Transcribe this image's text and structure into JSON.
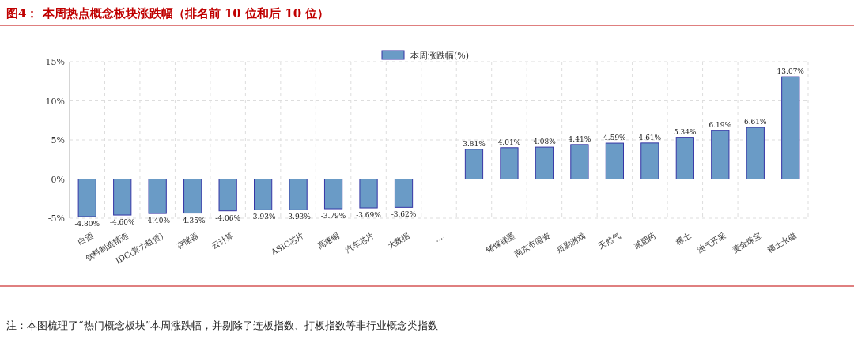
{
  "chart_data": {
    "type": "bar",
    "title": "图4： 本周热点概念板块涨跌幅（排名前 10 位和后 10 位）",
    "categories": [
      "白酒",
      "饮料制造精选",
      "IDC(算力租赁)",
      "存储器",
      "云计算",
      null,
      "ASIC芯片",
      "高速铜",
      "汽车芯片",
      "大数据",
      "....",
      null,
      "锗镓锑墨",
      "南京市国资",
      "短剧游戏",
      "天然气",
      "减肥药",
      "稀土",
      "油气开采",
      "黄金珠宝",
      "稀土永磁"
    ],
    "series": [
      {
        "name": "本周涨跌幅(%)",
        "color": "#6a9bc6",
        "values": [
          -4.8,
          -4.6,
          -4.4,
          -4.35,
          -4.06,
          -3.93,
          -3.93,
          -3.79,
          -3.69,
          -3.62,
          null,
          3.81,
          4.01,
          4.08,
          4.41,
          4.59,
          4.61,
          5.34,
          6.19,
          6.61,
          13.07
        ],
        "value_labels": [
          "-4.80%",
          "-4.60%",
          "-4.40%",
          "-4.35%",
          "-4.06%",
          "-3.93%",
          "-3.93%",
          "-3.79%",
          "-3.69%",
          "-3.62%",
          null,
          "3.81%",
          "4.01%",
          "4.08%",
          "4.41%",
          "4.59%",
          "4.61%",
          "5.34%",
          "6.19%",
          "6.61%",
          "13.07%"
        ]
      }
    ],
    "ylim": [
      -5,
      15
    ],
    "yticks": [
      {
        "value": -5,
        "label": "-5%"
      },
      {
        "value": 0,
        "label": "0%"
      },
      {
        "value": 5,
        "label": "5%"
      },
      {
        "value": 10,
        "label": "10%"
      },
      {
        "value": 15,
        "label": "15%"
      }
    ],
    "grid": true,
    "legend": "top",
    "annotations": [
      "注：本图梳理了“热门概念板块”本周涨跌幅，并剔除了连板指数、打板指数等非行业概念类指数"
    ]
  }
}
